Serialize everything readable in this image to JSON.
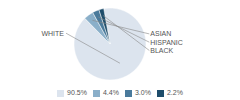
{
  "chart_data": {
    "type": "pie",
    "categories": [
      "WHITE",
      "ASIAN",
      "HISPANIC",
      "BLACK"
    ],
    "values": [
      90.5,
      4.4,
      3.0,
      2.2
    ],
    "value_labels": [
      "90.5%",
      "4.4%",
      "3.0%",
      "2.2%"
    ],
    "colors": [
      "#dce4ee",
      "#8aafc9",
      "#4a7a9b",
      "#1e4d6b"
    ],
    "legend": "bottom"
  }
}
